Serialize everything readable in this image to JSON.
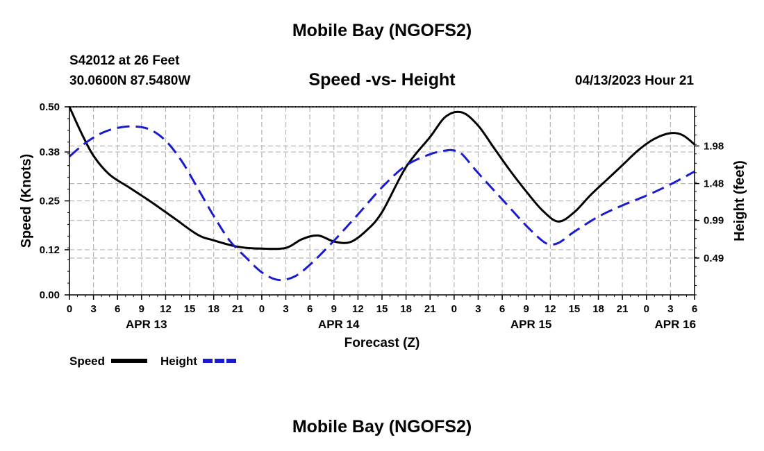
{
  "page": {
    "title_top": "Mobile Bay (NGOFS2)",
    "title_bottom": "Mobile Bay (NGOFS2)",
    "station": "S42012 at 26 Feet",
    "coords": "30.0600N  87.5480W",
    "datetime": "04/13/2023 Hour 21"
  },
  "colors": {
    "speed": "#000000",
    "height": "#1a1ad0",
    "grid": "#b4b4b4"
  },
  "chart_data": {
    "type": "line",
    "title": "Speed -vs- Height",
    "xlabel": "Forecast (Z)",
    "ylabel": "Speed (Knots)",
    "y2label": "Height (feet)",
    "xlim": [
      0,
      78
    ],
    "ylim": [
      0.0,
      0.5
    ],
    "y2lim": [
      0.0,
      2.5
    ],
    "x_ticks": [
      0,
      3,
      6,
      9,
      12,
      15,
      18,
      21,
      24,
      27,
      30,
      33,
      36,
      39,
      42,
      45,
      48,
      51,
      54,
      57,
      60,
      63,
      66,
      69,
      72,
      75,
      78
    ],
    "x_tick_labels": [
      "0",
      "3",
      "6",
      "9",
      "12",
      "15",
      "18",
      "21",
      "0",
      "3",
      "6",
      "9",
      "12",
      "15",
      "18",
      "21",
      "0",
      "3",
      "6",
      "9",
      "12",
      "15",
      "18",
      "21",
      "0",
      "3",
      "6"
    ],
    "date_labels": [
      {
        "x": 9.6,
        "label": "APR 13"
      },
      {
        "x": 33.6,
        "label": "APR 14"
      },
      {
        "x": 57.6,
        "label": "APR 15"
      },
      {
        "x": 75.6,
        "label": "APR 16"
      }
    ],
    "y_ticks": [
      0.0,
      0.12,
      0.25,
      0.38,
      0.5
    ],
    "y_tick_labels": [
      "0.00",
      "0.12",
      "0.25",
      "0.38",
      "0.50"
    ],
    "y2_ticks": [
      0.49,
      0.99,
      1.48,
      1.98
    ],
    "y2_tick_labels": [
      "0.49",
      "0.99",
      "1.48",
      "1.98"
    ],
    "legend": [
      {
        "name": "Speed",
        "style": "solid"
      },
      {
        "name": "Height",
        "style": "dashed"
      }
    ],
    "series": [
      {
        "name": "Speed",
        "axis": "left",
        "x": [
          0,
          1.5,
          3,
          5,
          7.5,
          10,
          13,
          16,
          18,
          21,
          24,
          27,
          29,
          31,
          33,
          35,
          37,
          39,
          42,
          45,
          47,
          49,
          51,
          53,
          55,
          57,
          59,
          61,
          63,
          65,
          67,
          69,
          71,
          73,
          75,
          76.5,
          78
        ],
        "values": [
          0.5,
          0.43,
          0.37,
          0.32,
          0.285,
          0.25,
          0.205,
          0.16,
          0.145,
          0.128,
          0.123,
          0.125,
          0.148,
          0.158,
          0.142,
          0.14,
          0.17,
          0.22,
          0.34,
          0.42,
          0.475,
          0.485,
          0.45,
          0.39,
          0.33,
          0.275,
          0.225,
          0.195,
          0.22,
          0.265,
          0.305,
          0.345,
          0.385,
          0.415,
          0.43,
          0.425,
          0.4
        ]
      },
      {
        "name": "Height",
        "axis": "right",
        "x": [
          0,
          2,
          4,
          6,
          8,
          10,
          12,
          14,
          16,
          18,
          20,
          22,
          24,
          26,
          28,
          30,
          33,
          36,
          39,
          42,
          45,
          47,
          48,
          49,
          51,
          54,
          57,
          59,
          60,
          61,
          62,
          63,
          66,
          69,
          72,
          75,
          78
        ],
        "values": [
          1.84,
          2.02,
          2.15,
          2.22,
          2.24,
          2.2,
          2.05,
          1.78,
          1.42,
          1.05,
          0.72,
          0.5,
          0.3,
          0.2,
          0.24,
          0.4,
          0.72,
          1.07,
          1.43,
          1.72,
          1.87,
          1.92,
          1.92,
          1.87,
          1.62,
          1.27,
          0.92,
          0.72,
          0.67,
          0.69,
          0.76,
          0.84,
          1.04,
          1.19,
          1.32,
          1.47,
          1.64
        ]
      }
    ]
  }
}
